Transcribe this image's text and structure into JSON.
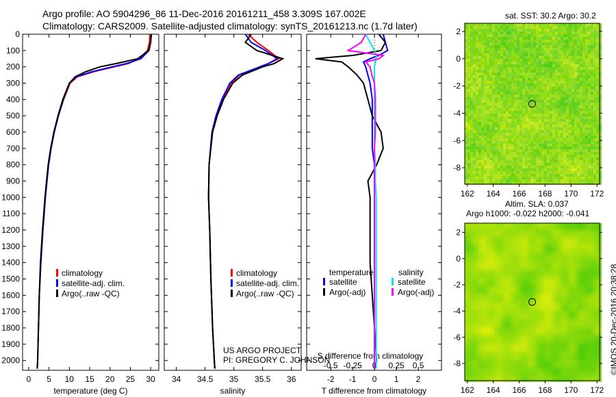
{
  "title": {
    "line1": "Argo profile: AO 5904296_86 11-Dec-2016 20161211_458 3.309S 167.002E",
    "line2": "Climatology: CARS2009. Satellite-adjusted climatology: synTS_20161213.nc (1.7d later)"
  },
  "credit": {
    "project": "US ARGO PROJECT",
    "pi": "PI: GREGORY C. JOHNSON",
    "stamp": "©IMOS 20-Dec-2016 20:38:28"
  },
  "colors": {
    "climatology": "#ff0000",
    "satellite": "#0000ff",
    "argo": "#000000",
    "sal_sat": "#00e5ee",
    "sal_argo": "#ff00ff"
  },
  "chart_data": [
    {
      "type": "line",
      "id": "temperature",
      "xlabel": "temperature (deg C)",
      "ylabel": "",
      "xlim": [
        -1.5,
        32
      ],
      "ylim": [
        2060,
        0
      ],
      "xticks": [
        0,
        5,
        10,
        15,
        20,
        25,
        30
      ],
      "yticks": [
        0,
        100,
        200,
        300,
        400,
        500,
        600,
        700,
        800,
        900,
        1000,
        1100,
        1200,
        1300,
        1400,
        1500,
        1600,
        1700,
        1800,
        1900,
        2000
      ],
      "depth": [
        0,
        50,
        100,
        150,
        180,
        200,
        230,
        260,
        300,
        400,
        500,
        600,
        700,
        800,
        900,
        1000,
        1200,
        1400,
        1600,
        1800,
        2000,
        2050
      ],
      "legend": [
        "climatology",
        "satellite-adj. clim.",
        "Argo(..raw -QC)"
      ],
      "series": [
        {
          "name": "climatology",
          "values": [
            29.8,
            29.7,
            29.2,
            27.2,
            24.5,
            21,
            16,
            12,
            10.2,
            8.6,
            7.3,
            6.3,
            5.5,
            4.9,
            4.5,
            4.1,
            3.5,
            3.0,
            2.6,
            2.4,
            2.2,
            2.1
          ]
        },
        {
          "name": "satellite-adj. clim.",
          "values": [
            30.2,
            30,
            29.6,
            27.6,
            24,
            20.5,
            15.5,
            11.8,
            10,
            8.5,
            7.3,
            6.3,
            5.5,
            4.9,
            4.5,
            4.1,
            3.5,
            3.0,
            2.6,
            2.4,
            2.2,
            2.1
          ]
        },
        {
          "name": "Argo(..raw -QC)",
          "values": [
            30.1,
            30,
            29.5,
            26.8,
            21.5,
            17.5,
            14,
            11.5,
            10,
            8.4,
            7.2,
            6.2,
            5.4,
            4.8,
            4.4,
            4.0,
            3.4,
            2.9,
            2.6,
            2.4,
            2.2,
            2.1
          ]
        }
      ]
    },
    {
      "type": "line",
      "id": "salinity",
      "xlabel": "salinity",
      "xlim": [
        33.79,
        36.17
      ],
      "ylim": [
        2060,
        0
      ],
      "xticks": [
        34,
        34.5,
        35,
        35.5,
        36
      ],
      "depth": [
        0,
        50,
        100,
        150,
        180,
        200,
        250,
        300,
        400,
        500,
        600,
        800,
        1000,
        1200,
        1500,
        1800,
        2000,
        2050
      ],
      "legend": [
        "climatology",
        "satellite-adj. clim.",
        "Argo(..raw -QC)"
      ],
      "series": [
        {
          "name": "climatology",
          "values": [
            35.25,
            35.4,
            35.6,
            35.78,
            35.6,
            35.45,
            35.1,
            34.95,
            34.8,
            34.7,
            34.62,
            34.57,
            34.56,
            34.58,
            34.6,
            34.63,
            34.66,
            34.67
          ]
        },
        {
          "name": "satellite-adj. clim.",
          "values": [
            35.2,
            35.3,
            35.55,
            35.75,
            35.6,
            35.45,
            35.08,
            34.93,
            34.79,
            34.69,
            34.62,
            34.57,
            34.56,
            34.58,
            34.6,
            34.63,
            34.66,
            34.67
          ]
        },
        {
          "name": "Argo(..raw -QC)",
          "values": [
            35.3,
            35.2,
            35.4,
            35.85,
            35.7,
            35.5,
            35.15,
            34.98,
            34.82,
            34.71,
            34.63,
            34.57,
            34.56,
            34.58,
            34.6,
            34.63,
            34.66,
            34.67
          ]
        }
      ]
    },
    {
      "type": "line",
      "id": "differences",
      "xlabel": "T difference from climatology",
      "x2label": "S difference from climatology",
      "xlim": [
        -3.1,
        3.06
      ],
      "x2lim": [
        -0.775,
        0.765
      ],
      "ylim": [
        2060,
        0
      ],
      "xticks": [
        -2,
        -1,
        0,
        1,
        2
      ],
      "x2ticks": [
        -0.5,
        -0.25,
        0,
        0.25,
        0.5
      ],
      "depth": [
        0,
        50,
        100,
        130,
        150,
        170,
        200,
        250,
        300,
        400,
        500,
        600,
        700,
        800,
        900,
        1000,
        1200,
        1400,
        1600,
        1800,
        2000,
        2050
      ],
      "legend": {
        "temperature_header": "temperature",
        "salinity_header": "salinity",
        "items": [
          "satellite",
          "Argo(-adj)",
          "satellite",
          "Argo(-adj)"
        ]
      },
      "series": [
        {
          "name": "T satellite",
          "axis": "T",
          "values": [
            0.4,
            0.5,
            0.6,
            0.2,
            -0.2,
            -0.5,
            -0.4,
            -0.3,
            -0.2,
            -0.1,
            -0.1,
            -0.1,
            -0.1,
            0,
            0,
            0,
            0,
            0,
            0,
            0,
            0,
            0
          ]
        },
        {
          "name": "T Argo(-adj)",
          "axis": "T",
          "values": [
            0.2,
            0.5,
            0.3,
            -1,
            -2.7,
            -1.5,
            -1.2,
            -0.8,
            -0.5,
            -0.3,
            -0.1,
            0.3,
            0.4,
            0.1,
            -0.3,
            -0.2,
            -0.2,
            -0.2,
            -0.1,
            0,
            0.1,
            0
          ]
        },
        {
          "name": "S satellite",
          "axis": "S",
          "values": [
            -0.1,
            -0.05,
            0,
            0.02,
            0.02,
            0.01,
            0,
            0,
            0,
            0,
            0,
            0,
            0,
            0.01,
            0.01,
            0.02,
            0.02,
            0.02,
            0.02,
            0.02,
            0.02,
            0.02
          ]
        },
        {
          "name": "S Argo(-adj)",
          "axis": "S",
          "values": [
            -0.1,
            -0.15,
            -0.3,
            0.1,
            0.05,
            -0.1,
            -0.05,
            -0.03,
            0,
            0.01,
            0.01,
            0.01,
            0,
            0,
            0,
            0,
            0,
            0,
            0,
            0,
            0,
            0
          ]
        }
      ]
    },
    {
      "type": "heatmap",
      "id": "sst-map",
      "title": "sat. SST: 30.2 Argo: 30.2",
      "xlim": [
        161.8,
        172.2
      ],
      "ylim": [
        -9.2,
        2.6
      ],
      "xticks": [
        162,
        164,
        166,
        168,
        170,
        172
      ],
      "yticks": [
        2,
        0,
        -2,
        -4,
        -6,
        -8
      ],
      "marker": {
        "lon": 167.002,
        "lat": -3.309
      }
    },
    {
      "type": "heatmap",
      "id": "sla-map",
      "title": "Altim. SLA: 0.037",
      "subtitle": "Argo h1000: -0.022 h2000: -0.041",
      "xlim": [
        161.8,
        172.2
      ],
      "ylim": [
        -9.3,
        2.7
      ],
      "xticks": [
        162,
        164,
        166,
        168,
        170,
        172
      ],
      "yticks": [
        2,
        0,
        -2,
        -4,
        -6,
        -8
      ],
      "marker": {
        "lon": 167.002,
        "lat": -3.309
      }
    }
  ]
}
